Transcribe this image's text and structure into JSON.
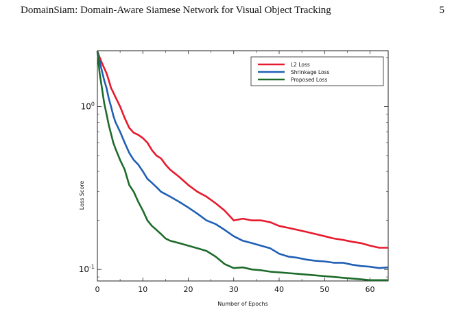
{
  "header": {
    "title": "DomainSiam: Domain-Aware Siamese Network for Visual Object Tracking",
    "page_number": "5"
  },
  "chart_data": {
    "type": "line",
    "title": "",
    "xlabel": "Number of Epochs",
    "ylabel": "Loss Score",
    "x_scale": "linear",
    "y_scale": "log",
    "xlim": [
      0,
      64
    ],
    "ylim": [
      0.085,
      2.2
    ],
    "x_ticks": [
      0,
      10,
      20,
      30,
      40,
      50,
      60
    ],
    "x_tick_labels": [
      "0",
      "10",
      "20",
      "30",
      "40",
      "50",
      "60"
    ],
    "y_ticks": [
      0.1,
      1
    ],
    "y_tick_labels": [
      {
        "base": "10",
        "exp": "-1"
      },
      {
        "base": "10",
        "exp": "0"
      }
    ],
    "grid": false,
    "legend_position": "top-right",
    "series": [
      {
        "name": "L2 Loss",
        "color": "#e8192c",
        "x": [
          0,
          0.5,
          1,
          1.5,
          2,
          2.5,
          3,
          3.5,
          4,
          5,
          6,
          7,
          8,
          9,
          10,
          11,
          12,
          13,
          14,
          15,
          16,
          18,
          20,
          22,
          24,
          26,
          28,
          30,
          32,
          34,
          36,
          38,
          40,
          42,
          44,
          46,
          48,
          50,
          52,
          54,
          56,
          58,
          60,
          62,
          64
        ],
        "y": [
          2.18,
          2.0,
          1.85,
          1.72,
          1.6,
          1.45,
          1.3,
          1.22,
          1.14,
          1.0,
          0.85,
          0.74,
          0.69,
          0.67,
          0.64,
          0.6,
          0.54,
          0.5,
          0.48,
          0.44,
          0.41,
          0.37,
          0.33,
          0.3,
          0.28,
          0.255,
          0.23,
          0.2,
          0.205,
          0.2,
          0.2,
          0.195,
          0.185,
          0.18,
          0.175,
          0.17,
          0.165,
          0.16,
          0.155,
          0.152,
          0.148,
          0.145,
          0.14,
          0.136,
          0.136
        ]
      },
      {
        "name": "Shrinkage Loss",
        "color": "#1f5fb4",
        "x": [
          0,
          0.5,
          1,
          1.5,
          2,
          2.5,
          3,
          3.5,
          4,
          5,
          6,
          7,
          8,
          9,
          10,
          11,
          12,
          13,
          14,
          15,
          16,
          18,
          20,
          22,
          24,
          26,
          28,
          30,
          32,
          34,
          36,
          38,
          40,
          42,
          44,
          46,
          48,
          50,
          52,
          54,
          56,
          58,
          60,
          62,
          64
        ],
        "y": [
          2.18,
          1.9,
          1.65,
          1.45,
          1.3,
          1.12,
          1.0,
          0.88,
          0.8,
          0.7,
          0.6,
          0.52,
          0.47,
          0.44,
          0.4,
          0.36,
          0.34,
          0.32,
          0.3,
          0.29,
          0.28,
          0.26,
          0.24,
          0.22,
          0.2,
          0.19,
          0.175,
          0.16,
          0.15,
          0.145,
          0.14,
          0.135,
          0.125,
          0.12,
          0.118,
          0.115,
          0.113,
          0.112,
          0.11,
          0.11,
          0.107,
          0.105,
          0.104,
          0.102,
          0.103
        ]
      },
      {
        "name": "Proposed Loss",
        "color": "#1d6b2a",
        "x": [
          0,
          0.5,
          1,
          1.5,
          2,
          2.5,
          3,
          3.5,
          4,
          5,
          6,
          7,
          8,
          9,
          10,
          11,
          12,
          13,
          14,
          15,
          16,
          18,
          20,
          22,
          24,
          26,
          28,
          30,
          32,
          34,
          36,
          38,
          40,
          42,
          44,
          46,
          48,
          50,
          52,
          54,
          56,
          58,
          60,
          62,
          64
        ],
        "y": [
          2.18,
          1.6,
          1.3,
          1.05,
          0.9,
          0.77,
          0.68,
          0.6,
          0.55,
          0.47,
          0.41,
          0.33,
          0.3,
          0.26,
          0.23,
          0.2,
          0.185,
          0.175,
          0.165,
          0.155,
          0.15,
          0.145,
          0.14,
          0.135,
          0.13,
          0.12,
          0.108,
          0.102,
          0.103,
          0.1,
          0.099,
          0.097,
          0.096,
          0.095,
          0.094,
          0.093,
          0.092,
          0.091,
          0.09,
          0.089,
          0.088,
          0.087,
          0.086,
          0.086,
          0.086
        ]
      }
    ]
  }
}
